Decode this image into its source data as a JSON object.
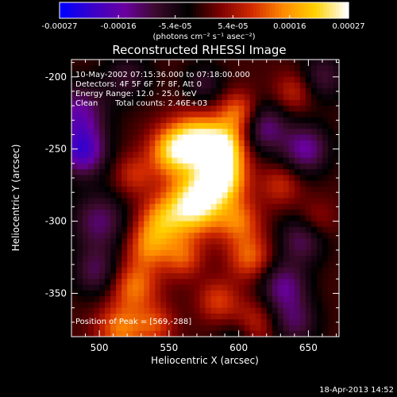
{
  "chart_data": {
    "type": "heatmap",
    "title": "Reconstructed RHESSI Image",
    "xlabel": "Heliocentric X (arcsec)",
    "ylabel": "Heliocentric Y (arcsec)",
    "xlim": [
      480,
      672
    ],
    "ylim": [
      -380,
      -188
    ],
    "x_ticks": [
      500,
      550,
      600,
      650
    ],
    "y_ticks": [
      -200,
      -250,
      -300,
      -350
    ],
    "colorbar": {
      "ticks": [
        "-0.00027",
        "-0.00016",
        "-5.4e-05",
        "5.4e-05",
        "0.00016",
        "0.00027"
      ],
      "tick_values": [
        -0.00027,
        -0.00016,
        -5.4e-05,
        5.4e-05,
        0.00016,
        0.00027
      ],
      "range": [
        -0.00027,
        0.00027
      ],
      "unit_label": "(photons cm⁻² s⁻¹ asec⁻²)",
      "colormap": [
        "#0000ff",
        "#3a00c8",
        "#6a00a0",
        "#3b0a2b",
        "#000000",
        "#7a0000",
        "#d22a00",
        "#ff8a00",
        "#ffd200",
        "#ffffff"
      ]
    },
    "annotations": {
      "time": "10-May-2002 07:15:36.000 to 07:18:00.000",
      "detectors": "Detectors: 4F 5F 6F 7F 8F, Att 0",
      "energy": "Energy Range: 12.0 - 25.0 keV",
      "method": "Clean",
      "counts": "Total counts: 2.46E+03",
      "peak": "Position of Peak = [569,-288]"
    },
    "peak": [
      569,
      -288
    ],
    "blobs": [
      {
        "x": 569,
        "y": -288,
        "amp": 1.0,
        "sigma": 14
      },
      {
        "x": 588,
        "y": -270,
        "amp": 0.9,
        "sigma": 12
      },
      {
        "x": 590,
        "y": -248,
        "amp": 0.75,
        "sigma": 11
      },
      {
        "x": 570,
        "y": -245,
        "amp": 0.85,
        "sigma": 13
      },
      {
        "x": 552,
        "y": -252,
        "amp": 0.65,
        "sigma": 12
      },
      {
        "x": 600,
        "y": -225,
        "amp": 0.5,
        "sigma": 10
      },
      {
        "x": 545,
        "y": -300,
        "amp": 0.55,
        "sigma": 12
      },
      {
        "x": 535,
        "y": -318,
        "amp": 0.45,
        "sigma": 11
      },
      {
        "x": 560,
        "y": -325,
        "amp": 0.4,
        "sigma": 10
      },
      {
        "x": 600,
        "y": -300,
        "amp": 0.45,
        "sigma": 11
      },
      {
        "x": 608,
        "y": -325,
        "amp": 0.45,
        "sigma": 11
      },
      {
        "x": 525,
        "y": -345,
        "amp": 0.5,
        "sigma": 12
      },
      {
        "x": 515,
        "y": -375,
        "amp": 0.5,
        "sigma": 12
      },
      {
        "x": 540,
        "y": -372,
        "amp": 0.35,
        "sigma": 10
      },
      {
        "x": 610,
        "y": -372,
        "amp": 0.35,
        "sigma": 12
      },
      {
        "x": 585,
        "y": -355,
        "amp": 0.35,
        "sigma": 10
      },
      {
        "x": 525,
        "y": -268,
        "amp": 0.3,
        "sigma": 10
      },
      {
        "x": 630,
        "y": -275,
        "amp": 0.3,
        "sigma": 10
      },
      {
        "x": 640,
        "y": -210,
        "amp": 0.3,
        "sigma": 10
      },
      {
        "x": 655,
        "y": -300,
        "amp": 0.25,
        "sigma": 10
      },
      {
        "x": 485,
        "y": -225,
        "amp": -0.55,
        "sigma": 14
      },
      {
        "x": 488,
        "y": -252,
        "amp": -0.7,
        "sigma": 12
      },
      {
        "x": 618,
        "y": -235,
        "amp": -0.5,
        "sigma": 12
      },
      {
        "x": 648,
        "y": -250,
        "amp": -0.55,
        "sigma": 12
      },
      {
        "x": 632,
        "y": -345,
        "amp": -0.5,
        "sigma": 12
      },
      {
        "x": 646,
        "y": -312,
        "amp": -0.45,
        "sigma": 12
      },
      {
        "x": 500,
        "y": -300,
        "amp": -0.45,
        "sigma": 14
      },
      {
        "x": 498,
        "y": -335,
        "amp": -0.4,
        "sigma": 12
      },
      {
        "x": 640,
        "y": -370,
        "amp": -0.4,
        "sigma": 12
      },
      {
        "x": 660,
        "y": -200,
        "amp": -0.35,
        "sigma": 12
      },
      {
        "x": 520,
        "y": -200,
        "amp": -0.3,
        "sigma": 12
      },
      {
        "x": 575,
        "y": -205,
        "amp": -0.3,
        "sigma": 10
      },
      {
        "x": 600,
        "y": -380,
        "amp": -0.3,
        "sigma": 10
      }
    ]
  },
  "footer": {
    "timestamp": "18-Apr-2013 14:52"
  }
}
